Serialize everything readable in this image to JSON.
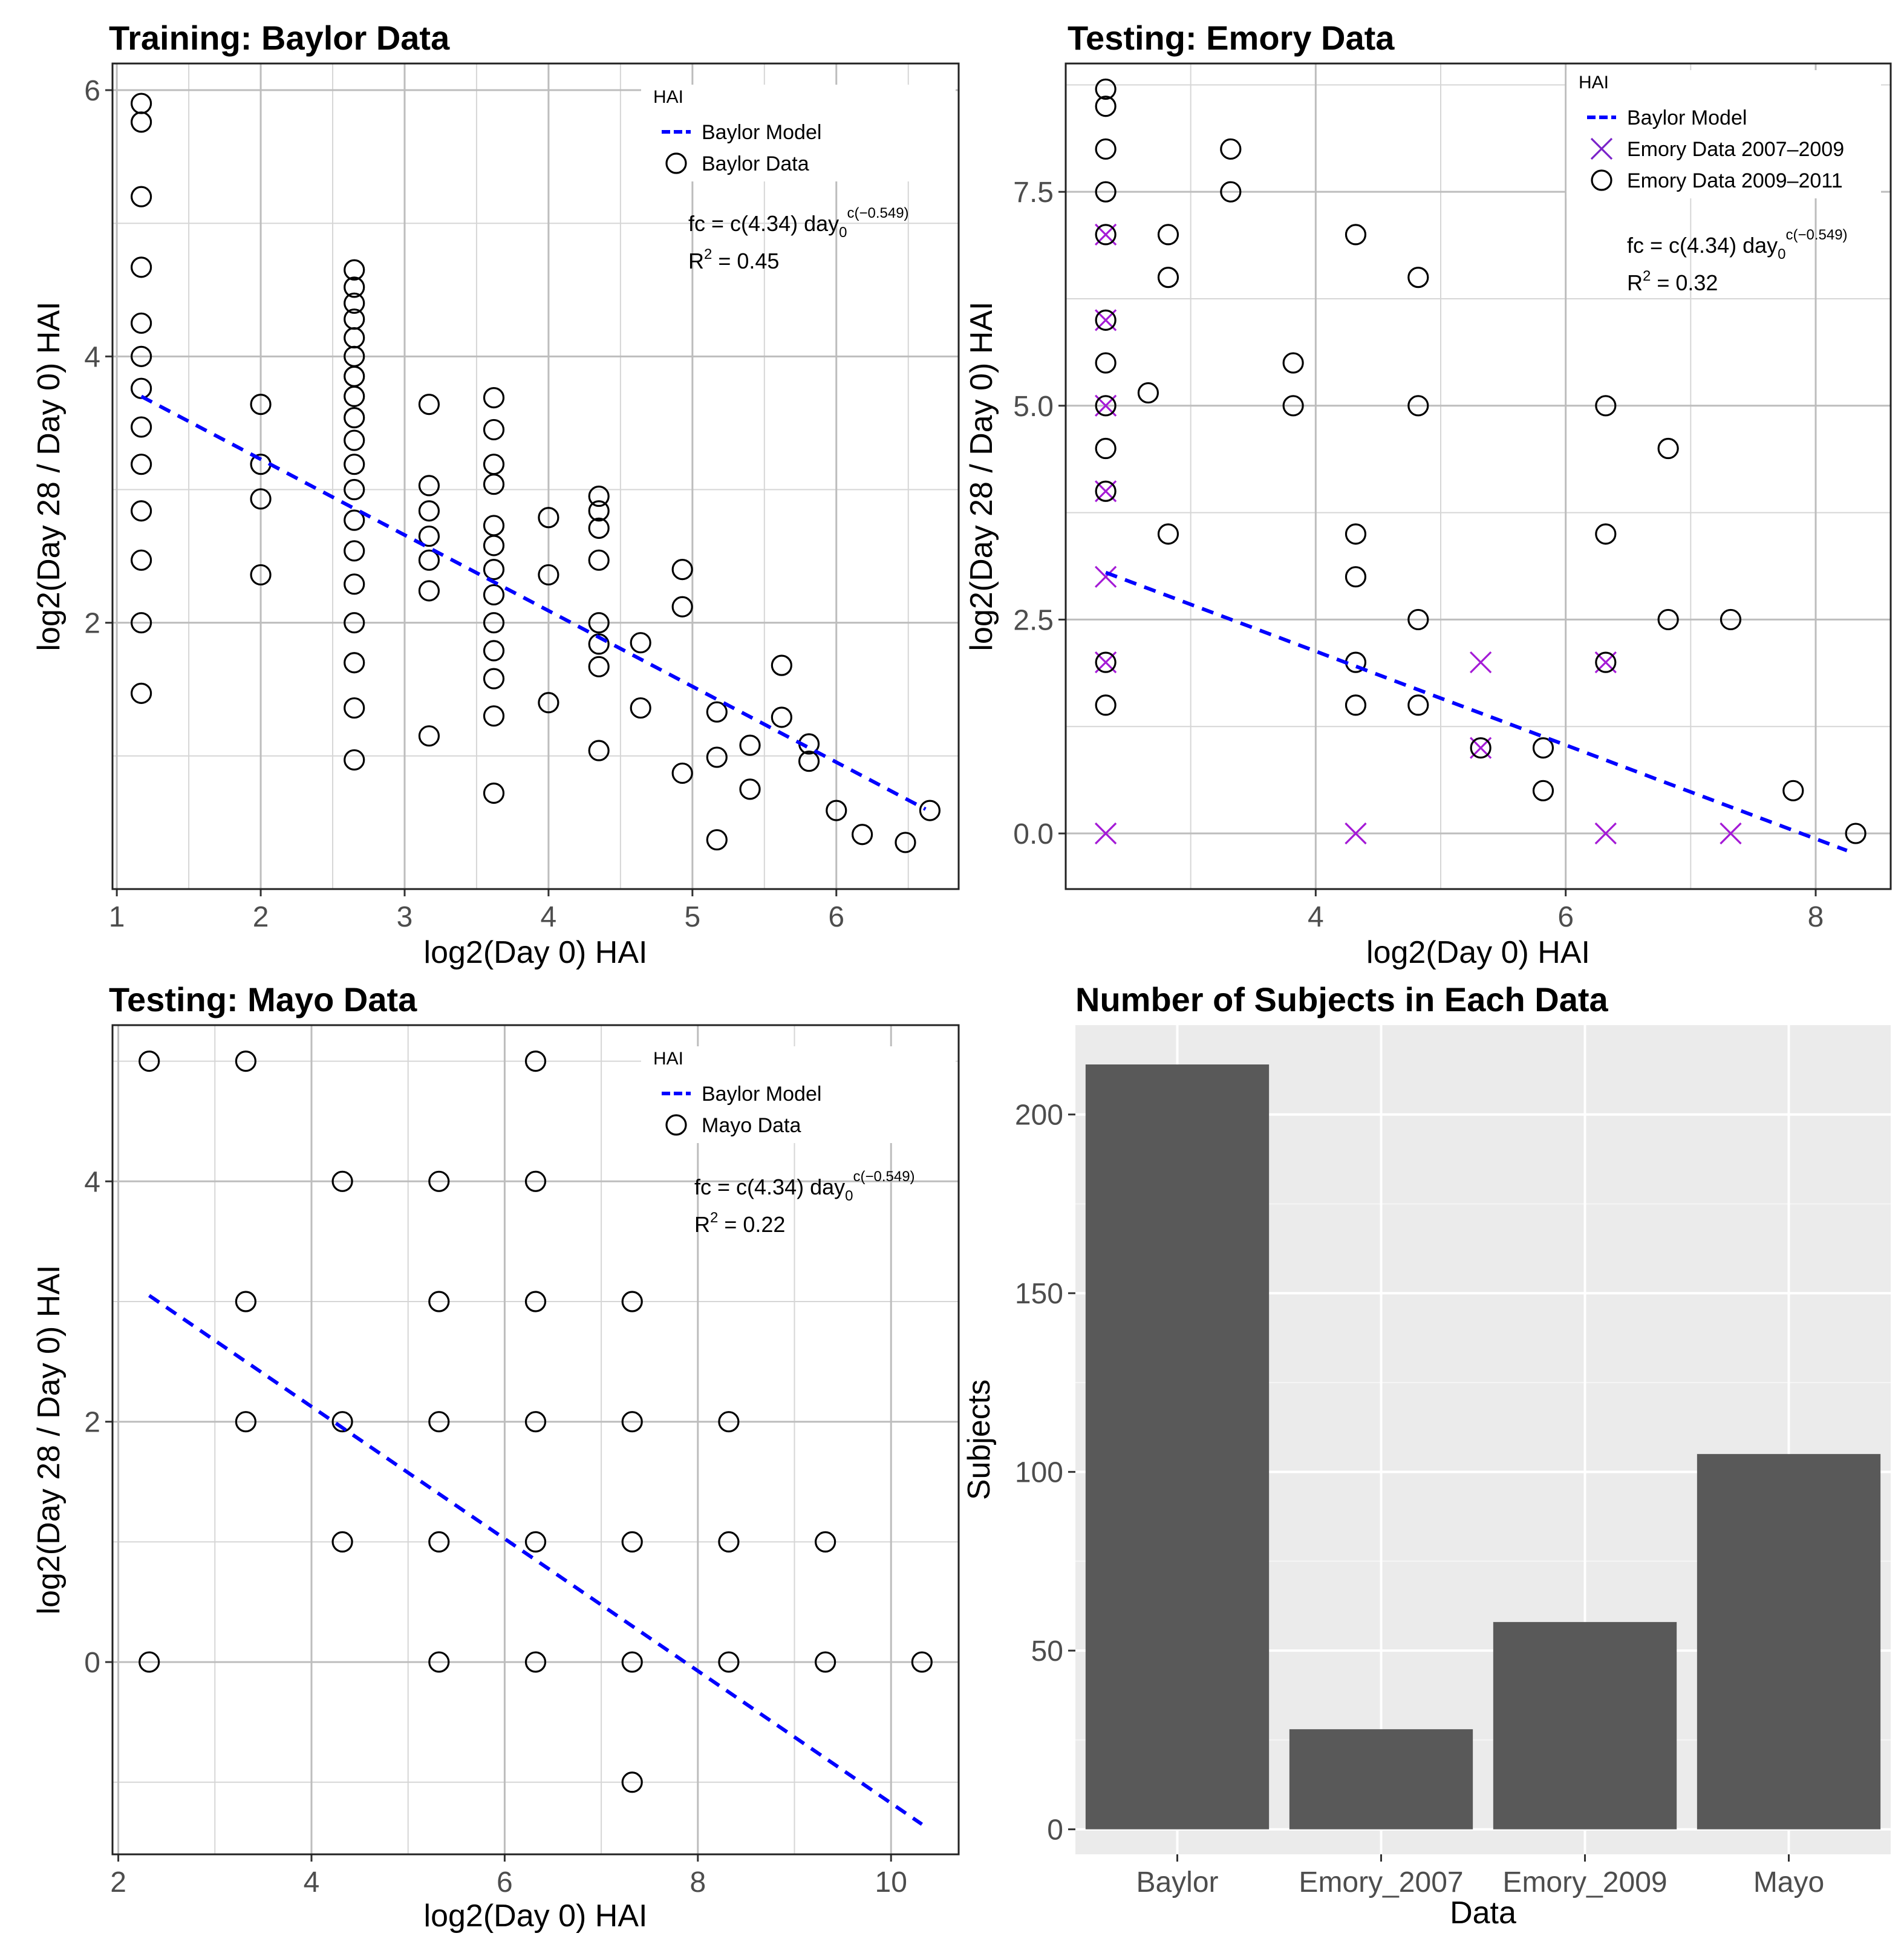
{
  "chart_data": [
    {
      "type": "scatter",
      "title": "Training: Baylor Data",
      "xlabel": "log2(Day 0) HAI",
      "ylabel": "log2(Day 28 / Day 0) HAI",
      "xlim": [
        0.97,
        6.85
      ],
      "ylim": [
        0.0,
        6.2
      ],
      "xticks": [
        1,
        2,
        3,
        4,
        5,
        6
      ],
      "yticks": [
        2,
        4,
        6
      ],
      "xtick_labels": [
        "1",
        "2",
        "3",
        "4",
        "5",
        "6"
      ],
      "ytick_labels": [
        "2",
        "4",
        "6"
      ],
      "legend_title": "HAI",
      "legend": [
        "Baylor Model",
        "Baylor Data"
      ],
      "annotation": {
        "formula_lhs": "fc = ",
        "formula_rhs": "c(4.34) day",
        "sub": "0",
        "sup": "c(−0.549)",
        "r2_label": "R",
        "r2_sup": "2",
        "r2_value": " = 0.45"
      },
      "model_line": {
        "x": [
          1.17,
          6.62
        ],
        "y": [
          3.7,
          0.6
        ]
      },
      "series": [
        {
          "name": "Baylor Data",
          "marker": "circle",
          "points": [
            [
              1.17,
              5.9
            ],
            [
              1.17,
              5.76
            ],
            [
              1.17,
              5.2
            ],
            [
              1.17,
              4.67
            ],
            [
              1.17,
              4.25
            ],
            [
              1.17,
              4.0
            ],
            [
              1.17,
              3.76
            ],
            [
              1.17,
              3.47
            ],
            [
              1.17,
              3.19
            ],
            [
              1.17,
              2.84
            ],
            [
              1.17,
              2.47
            ],
            [
              1.17,
              2.0
            ],
            [
              1.17,
              1.47
            ],
            [
              2.0,
              3.64
            ],
            [
              2.0,
              3.19
            ],
            [
              2.0,
              2.93
            ],
            [
              2.0,
              2.36
            ],
            [
              2.65,
              4.65
            ],
            [
              2.65,
              4.52
            ],
            [
              2.65,
              4.4
            ],
            [
              2.65,
              4.28
            ],
            [
              2.65,
              4.14
            ],
            [
              2.65,
              4.0
            ],
            [
              2.65,
              3.85
            ],
            [
              2.65,
              3.7
            ],
            [
              2.65,
              3.54
            ],
            [
              2.65,
              3.37
            ],
            [
              2.65,
              3.19
            ],
            [
              2.65,
              3.0
            ],
            [
              2.65,
              2.77
            ],
            [
              2.65,
              2.54
            ],
            [
              2.65,
              2.29
            ],
            [
              2.65,
              2.0
            ],
            [
              2.65,
              1.7
            ],
            [
              2.65,
              1.36
            ],
            [
              2.65,
              0.97
            ],
            [
              3.17,
              3.64
            ],
            [
              3.17,
              3.03
            ],
            [
              3.17,
              2.84
            ],
            [
              3.17,
              2.65
            ],
            [
              3.17,
              2.47
            ],
            [
              3.17,
              2.24
            ],
            [
              3.17,
              1.15
            ],
            [
              3.62,
              3.69
            ],
            [
              3.62,
              3.45
            ],
            [
              3.62,
              3.19
            ],
            [
              3.62,
              3.04
            ],
            [
              3.62,
              2.73
            ],
            [
              3.62,
              2.58
            ],
            [
              3.62,
              2.4
            ],
            [
              3.62,
              2.21
            ],
            [
              3.62,
              2.0
            ],
            [
              3.62,
              1.79
            ],
            [
              3.62,
              1.58
            ],
            [
              3.62,
              1.3
            ],
            [
              3.62,
              0.72
            ],
            [
              4.0,
              2.79
            ],
            [
              4.0,
              2.36
            ],
            [
              4.0,
              1.4
            ],
            [
              4.35,
              2.95
            ],
            [
              4.35,
              2.84
            ],
            [
              4.35,
              2.71
            ],
            [
              4.35,
              2.47
            ],
            [
              4.35,
              2.0
            ],
            [
              4.35,
              1.84
            ],
            [
              4.35,
              1.67
            ],
            [
              4.35,
              1.04
            ],
            [
              4.64,
              1.85
            ],
            [
              4.64,
              1.36
            ],
            [
              4.93,
              2.4
            ],
            [
              4.93,
              2.12
            ],
            [
              4.93,
              0.87
            ],
            [
              5.17,
              1.33
            ],
            [
              5.17,
              0.99
            ],
            [
              5.17,
              0.37
            ],
            [
              5.4,
              1.08
            ],
            [
              5.4,
              0.75
            ],
            [
              5.62,
              1.68
            ],
            [
              5.62,
              1.29
            ],
            [
              5.81,
              1.09
            ],
            [
              5.81,
              0.96
            ],
            [
              6.0,
              0.59
            ],
            [
              6.18,
              0.41
            ],
            [
              6.48,
              0.35
            ],
            [
              6.65,
              0.59
            ]
          ]
        }
      ]
    },
    {
      "type": "scatter",
      "title": "Testing: Emory Data",
      "xlabel": "log2(Day 0) HAI",
      "ylabel": "log2(Day 28 / Day 0) HAI",
      "xlim": [
        2.0,
        8.6
      ],
      "ylim": [
        -0.65,
        9.0
      ],
      "xticks": [
        4,
        6,
        8
      ],
      "yticks": [
        0.0,
        2.5,
        5.0,
        7.5
      ],
      "xtick_labels": [
        "4",
        "6",
        "8"
      ],
      "ytick_labels": [
        "0.0",
        "2.5",
        "5.0",
        "7.5"
      ],
      "legend_title": "HAI",
      "legend": [
        "Baylor Model",
        "Emory Data 2007–2009",
        "Emory Data 2009–2011"
      ],
      "annotation": {
        "formula_lhs": "fc = ",
        "formula_rhs": "c(4.34) day",
        "sub": "0",
        "sup": "c(−0.549)",
        "r2_label": "R",
        "r2_sup": "2",
        "r2_value": " = 0.32"
      },
      "model_line": {
        "x": [
          2.32,
          8.25
        ],
        "y": [
          3.05,
          -0.2
        ]
      },
      "series": [
        {
          "name": "Emory Data 2007–2009",
          "marker": "x",
          "points": [
            [
              2.32,
              7.0
            ],
            [
              2.32,
              6.0
            ],
            [
              2.32,
              5.0
            ],
            [
              2.32,
              4.0
            ],
            [
              2.32,
              3.0
            ],
            [
              2.32,
              2.0
            ],
            [
              2.32,
              0.0
            ],
            [
              4.32,
              0.0
            ],
            [
              5.32,
              2.0
            ],
            [
              5.32,
              1.0
            ],
            [
              6.32,
              2.0
            ],
            [
              6.32,
              0.0
            ],
            [
              7.32,
              0.0
            ]
          ]
        },
        {
          "name": "Emory Data 2009–2011",
          "marker": "circle",
          "points": [
            [
              2.32,
              8.7
            ],
            [
              2.32,
              8.5
            ],
            [
              2.32,
              8.0
            ],
            [
              2.32,
              7.5
            ],
            [
              2.32,
              7.0
            ],
            [
              2.32,
              6.0
            ],
            [
              2.32,
              5.5
            ],
            [
              2.32,
              5.0
            ],
            [
              2.32,
              4.5
            ],
            [
              2.32,
              4.0
            ],
            [
              2.32,
              2.0
            ],
            [
              2.32,
              1.5
            ],
            [
              2.66,
              5.15
            ],
            [
              2.82,
              7.0
            ],
            [
              2.82,
              6.5
            ],
            [
              2.82,
              3.5
            ],
            [
              3.32,
              8.0
            ],
            [
              3.32,
              7.5
            ],
            [
              3.82,
              5.5
            ],
            [
              3.82,
              5.0
            ],
            [
              4.32,
              7.0
            ],
            [
              4.32,
              3.5
            ],
            [
              4.32,
              3.0
            ],
            [
              4.32,
              2.0
            ],
            [
              4.32,
              1.5
            ],
            [
              4.82,
              6.5
            ],
            [
              4.82,
              5.0
            ],
            [
              4.82,
              2.5
            ],
            [
              4.82,
              1.5
            ],
            [
              5.32,
              1.0
            ],
            [
              5.82,
              1.0
            ],
            [
              5.82,
              0.5
            ],
            [
              6.32,
              5.0
            ],
            [
              6.32,
              3.5
            ],
            [
              6.32,
              2.0
            ],
            [
              6.82,
              4.5
            ],
            [
              6.82,
              2.5
            ],
            [
              7.32,
              2.5
            ],
            [
              7.82,
              0.5
            ],
            [
              8.32,
              0.0
            ]
          ]
        }
      ]
    },
    {
      "type": "scatter",
      "title": "Testing: Mayo Data",
      "xlabel": "log2(Day 0) HAI",
      "ylabel": "log2(Day 28 / Day 0) HAI",
      "xlim": [
        1.94,
        10.7
      ],
      "ylim": [
        -1.6,
        5.3
      ],
      "xticks": [
        2,
        4,
        6,
        8,
        10
      ],
      "yticks": [
        0,
        2,
        4
      ],
      "xtick_labels": [
        "2",
        "4",
        "6",
        "8",
        "10"
      ],
      "ytick_labels": [
        "0",
        "2",
        "4"
      ],
      "legend_title": "HAI",
      "legend": [
        "Baylor Model",
        "Mayo Data"
      ],
      "annotation": {
        "formula_lhs": "fc = ",
        "formula_rhs": "c(4.34) day",
        "sub": "0",
        "sup": "c(−0.549)",
        "r2_label": "R",
        "r2_sup": "2",
        "r2_value": " = 0.22"
      },
      "model_line": {
        "x": [
          2.32,
          10.32
        ],
        "y": [
          3.05,
          -1.35
        ]
      },
      "series": [
        {
          "name": "Mayo Data",
          "marker": "circle",
          "points": [
            [
              2.32,
              5
            ],
            [
              2.32,
              0
            ],
            [
              3.32,
              5
            ],
            [
              3.32,
              3
            ],
            [
              3.32,
              2
            ],
            [
              4.32,
              4
            ],
            [
              4.32,
              2
            ],
            [
              4.32,
              1
            ],
            [
              5.32,
              4
            ],
            [
              5.32,
              3
            ],
            [
              5.32,
              2
            ],
            [
              5.32,
              1
            ],
            [
              5.32,
              0
            ],
            [
              6.32,
              5
            ],
            [
              6.32,
              4
            ],
            [
              6.32,
              3
            ],
            [
              6.32,
              2
            ],
            [
              6.32,
              1
            ],
            [
              6.32,
              0
            ],
            [
              7.32,
              3
            ],
            [
              7.32,
              2
            ],
            [
              7.32,
              1
            ],
            [
              7.32,
              0
            ],
            [
              7.32,
              -1
            ],
            [
              8.32,
              2
            ],
            [
              8.32,
              1
            ],
            [
              8.32,
              0
            ],
            [
              9.32,
              1
            ],
            [
              9.32,
              0
            ],
            [
              10.32,
              0
            ]
          ]
        }
      ]
    },
    {
      "type": "bar",
      "title": "Number of Subjects in Each Data",
      "xlabel": "Data",
      "ylabel": "Subjects",
      "categories": [
        "Baylor",
        "Emory_2007",
        "Emory_2009",
        "Mayo"
      ],
      "values": [
        214,
        28,
        58,
        105
      ],
      "ylim": [
        -7,
        225
      ],
      "yticks": [
        0,
        50,
        100,
        150,
        200
      ],
      "ytick_labels": [
        "0",
        "50",
        "100",
        "150",
        "200"
      ]
    }
  ]
}
